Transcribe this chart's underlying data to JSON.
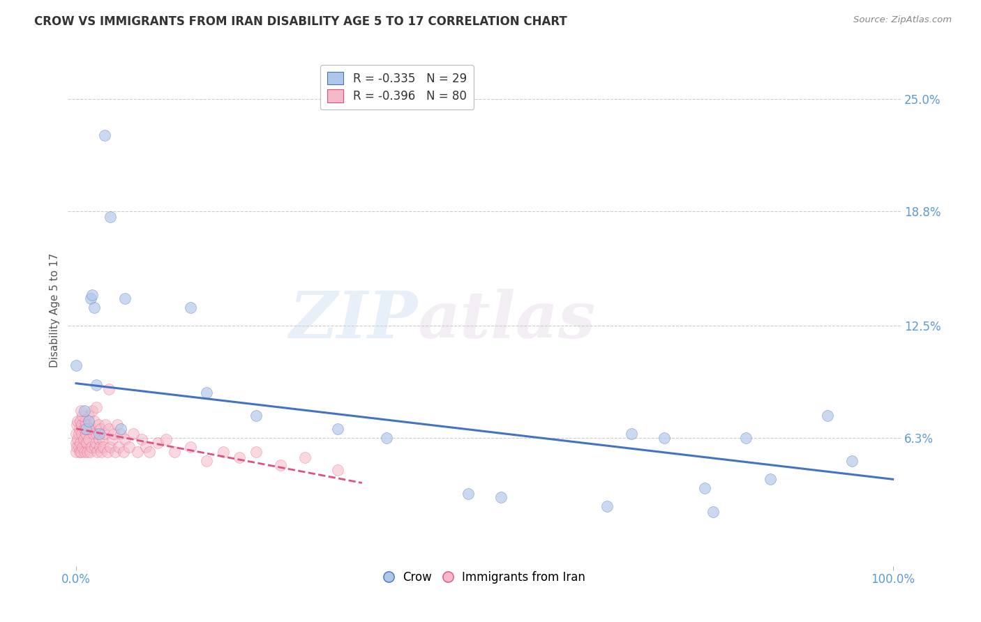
{
  "title": "CROW VS IMMIGRANTS FROM IRAN DISABILITY AGE 5 TO 17 CORRELATION CHART",
  "source": "Source: ZipAtlas.com",
  "ylabel": "Disability Age 5 to 17",
  "right_ytick_labels": [
    "25.0%",
    "18.8%",
    "12.5%",
    "6.3%"
  ],
  "right_ytick_values": [
    0.25,
    0.188,
    0.125,
    0.063
  ],
  "xlim": [
    -0.01,
    1.01
  ],
  "ylim": [
    -0.008,
    0.275
  ],
  "xtick_labels": [
    "0.0%",
    "100.0%"
  ],
  "xtick_values": [
    0.0,
    1.0
  ],
  "legend_crow_r": "R = -0.335",
  "legend_crow_n": "N = 29",
  "legend_iran_r": "R = -0.396",
  "legend_iran_n": "N = 80",
  "legend_crow_label": "Crow",
  "legend_iran_label": "Immigrants from Iran",
  "crow_color": "#aec6e8",
  "iran_color": "#f5b8c8",
  "crow_line_color": "#4472C4",
  "iran_line_color": "#E05080",
  "crow_scatter_x": [
    0.012,
    0.018,
    0.02,
    0.022,
    0.025,
    0.01,
    0.015,
    0.042,
    0.06,
    0.0,
    0.028,
    0.14,
    0.32,
    0.48,
    0.72,
    0.82,
    0.85,
    0.77,
    0.68,
    0.92,
    0.035,
    0.055,
    0.16,
    0.22,
    0.38,
    0.52,
    0.65,
    0.78,
    0.95
  ],
  "crow_scatter_y": [
    0.068,
    0.14,
    0.142,
    0.135,
    0.092,
    0.078,
    0.072,
    0.185,
    0.14,
    0.103,
    0.065,
    0.135,
    0.068,
    0.032,
    0.063,
    0.063,
    0.04,
    0.035,
    0.065,
    0.075,
    0.23,
    0.068,
    0.088,
    0.075,
    0.063,
    0.03,
    0.025,
    0.022,
    0.05
  ],
  "iran_scatter_x": [
    0.0,
    0.0,
    0.0,
    0.001,
    0.001,
    0.002,
    0.002,
    0.003,
    0.003,
    0.004,
    0.004,
    0.005,
    0.005,
    0.006,
    0.007,
    0.007,
    0.008,
    0.009,
    0.01,
    0.01,
    0.011,
    0.012,
    0.013,
    0.014,
    0.015,
    0.015,
    0.016,
    0.017,
    0.018,
    0.019,
    0.02,
    0.021,
    0.022,
    0.023,
    0.024,
    0.025,
    0.026,
    0.027,
    0.028,
    0.029,
    0.03,
    0.031,
    0.032,
    0.033,
    0.035,
    0.036,
    0.038,
    0.04,
    0.042,
    0.044,
    0.046,
    0.048,
    0.05,
    0.052,
    0.055,
    0.058,
    0.06,
    0.065,
    0.07,
    0.075,
    0.08,
    0.085,
    0.09,
    0.1,
    0.11,
    0.12,
    0.14,
    0.16,
    0.18,
    0.2,
    0.22,
    0.25,
    0.28,
    0.32,
    0.012,
    0.008,
    0.006,
    0.015,
    0.025,
    0.04
  ],
  "iran_scatter_y": [
    0.055,
    0.06,
    0.065,
    0.058,
    0.07,
    0.062,
    0.072,
    0.058,
    0.065,
    0.068,
    0.055,
    0.072,
    0.06,
    0.055,
    0.065,
    0.07,
    0.058,
    0.062,
    0.068,
    0.055,
    0.072,
    0.065,
    0.06,
    0.055,
    0.075,
    0.062,
    0.07,
    0.055,
    0.068,
    0.058,
    0.078,
    0.065,
    0.072,
    0.058,
    0.06,
    0.065,
    0.055,
    0.07,
    0.062,
    0.058,
    0.068,
    0.055,
    0.062,
    0.058,
    0.065,
    0.07,
    0.055,
    0.068,
    0.058,
    0.062,
    0.065,
    0.055,
    0.07,
    0.058,
    0.065,
    0.055,
    0.062,
    0.058,
    0.065,
    0.055,
    0.062,
    0.058,
    0.055,
    0.06,
    0.062,
    0.055,
    0.058,
    0.05,
    0.055,
    0.052,
    0.055,
    0.048,
    0.052,
    0.045,
    0.07,
    0.075,
    0.078,
    0.068,
    0.08,
    0.09
  ],
  "crow_trendline_x": [
    0.0,
    1.0
  ],
  "crow_trendline_y": [
    0.093,
    0.04
  ],
  "iran_trendline_x": [
    0.0,
    0.35
  ],
  "iran_trendline_y": [
    0.068,
    0.038
  ],
  "watermark_zip": "ZIP",
  "watermark_atlas": "atlas",
  "background_color": "#ffffff",
  "grid_color": "#cccccc",
  "title_fontsize": 12,
  "tick_color": "#5b9bd5",
  "ylabel_color": "#555555"
}
